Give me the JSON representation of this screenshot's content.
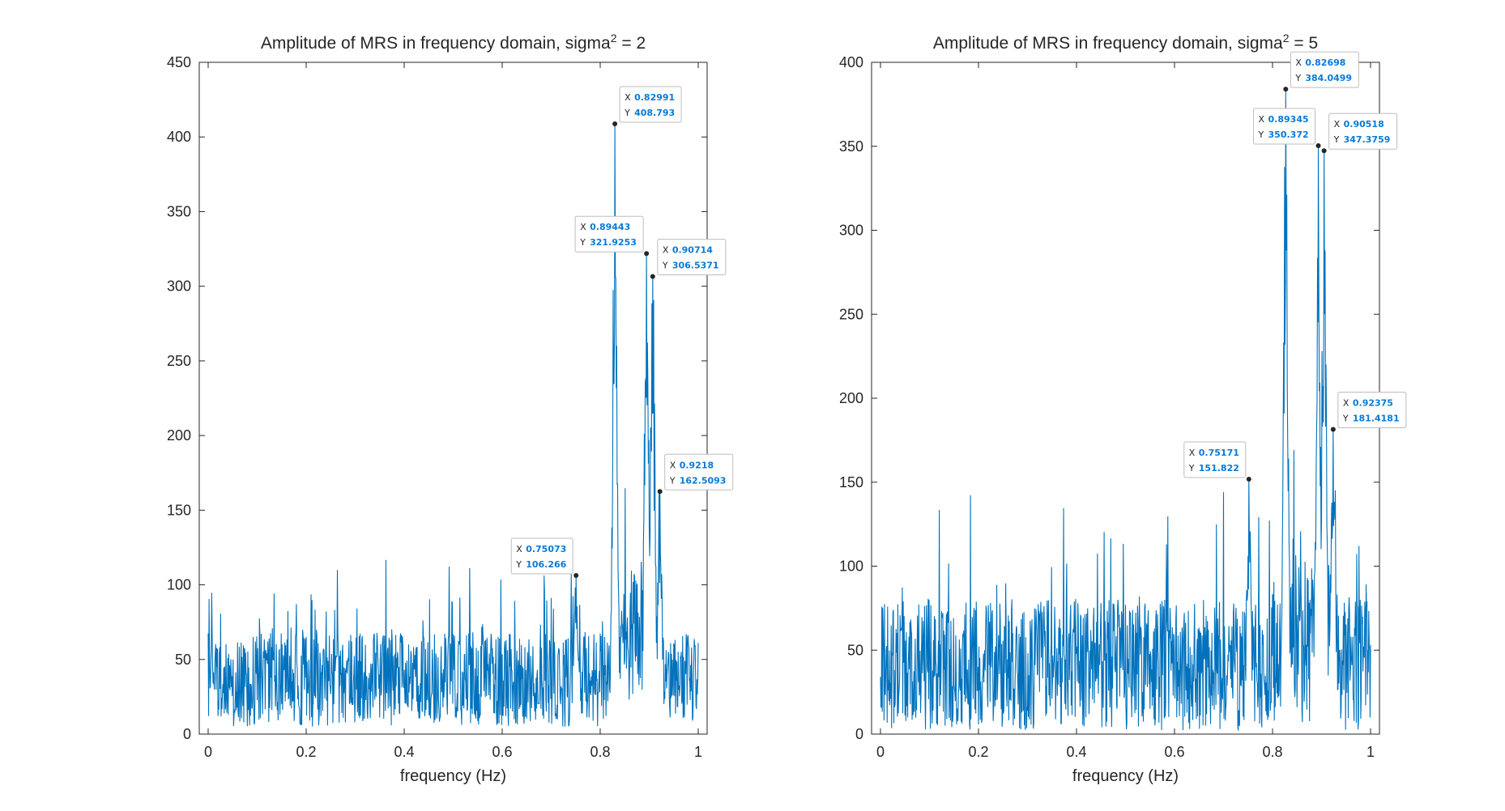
{
  "colors": {
    "series": "#0072BD",
    "axis": "#262626",
    "datatip_value": "#0a7ad6",
    "datatip_border": "#bdbdbd"
  },
  "chart_data": [
    {
      "type": "line",
      "title": "Amplitude of MRS in frequency domain, sigma",
      "title_superscript": "2",
      "title_suffix": " = 2",
      "xlabel": "frequency (Hz)",
      "ylabel": "",
      "xlim": [
        0,
        1
      ],
      "ylim": [
        0,
        450
      ],
      "xticks": [
        0,
        0.2,
        0.4,
        0.6,
        0.8,
        1
      ],
      "xtick_labels": [
        "0",
        "0.2",
        "0.4",
        "0.6",
        "0.8",
        "1"
      ],
      "yticks": [
        0,
        50,
        100,
        150,
        200,
        250,
        300,
        350,
        400,
        450
      ],
      "ytick_labels": [
        "0",
        "50",
        "100",
        "150",
        "200",
        "250",
        "300",
        "350",
        "400",
        "450"
      ],
      "grid": false,
      "series": [
        {
          "noise_floor_range": [
            5,
            120
          ],
          "peaks": [
            {
              "x": 0.75073,
              "y": 106.266
            },
            {
              "x": 0.82991,
              "y": 408.793
            },
            {
              "x": 0.89443,
              "y": 321.9253
            },
            {
              "x": 0.90714,
              "y": 306.5371
            },
            {
              "x": 0.9218,
              "y": 162.5093
            }
          ]
        }
      ],
      "datatips": [
        {
          "x": 0.82991,
          "y": 408.793,
          "x_text": "0.82991",
          "y_text": "408.793",
          "side": "right"
        },
        {
          "x": 0.89443,
          "y": 321.9253,
          "x_text": "0.89443",
          "y_text": "321.9253",
          "side": "left"
        },
        {
          "x": 0.90714,
          "y": 306.5371,
          "x_text": "0.90714",
          "y_text": "306.5371",
          "side": "right"
        },
        {
          "x": 0.9218,
          "y": 162.5093,
          "x_text": "0.9218",
          "y_text": "162.5093",
          "side": "right"
        },
        {
          "x": 0.75073,
          "y": 106.266,
          "x_text": "0.75073",
          "y_text": "106.266",
          "side": "left"
        }
      ]
    },
    {
      "type": "line",
      "title": "Amplitude of MRS in frequency domain, sigma",
      "title_superscript": "2",
      "title_suffix": " = 5",
      "xlabel": "frequency (Hz)",
      "ylabel": "",
      "xlim": [
        0,
        1
      ],
      "ylim": [
        0,
        400
      ],
      "xticks": [
        0,
        0.2,
        0.4,
        0.6,
        0.8,
        1
      ],
      "xtick_labels": [
        "0",
        "0.2",
        "0.4",
        "0.6",
        "0.8",
        "1"
      ],
      "yticks": [
        0,
        50,
        100,
        150,
        200,
        250,
        300,
        350,
        400
      ],
      "ytick_labels": [
        "0",
        "50",
        "100",
        "150",
        "200",
        "250",
        "300",
        "350",
        "400"
      ],
      "grid": false,
      "series": [
        {
          "noise_floor_range": [
            2,
            145
          ],
          "peaks": [
            {
              "x": 0.75171,
              "y": 151.822
            },
            {
              "x": 0.82698,
              "y": 384.0499
            },
            {
              "x": 0.89345,
              "y": 350.372
            },
            {
              "x": 0.90518,
              "y": 347.3759
            },
            {
              "x": 0.92375,
              "y": 181.4181
            }
          ]
        }
      ],
      "datatips": [
        {
          "x": 0.82698,
          "y": 384.0499,
          "x_text": "0.82698",
          "y_text": "384.0499",
          "side": "right"
        },
        {
          "x": 0.89345,
          "y": 350.372,
          "x_text": "0.89345",
          "y_text": "350.372",
          "side": "left"
        },
        {
          "x": 0.90518,
          "y": 347.3759,
          "x_text": "0.90518",
          "y_text": "347.3759",
          "side": "right"
        },
        {
          "x": 0.92375,
          "y": 181.4181,
          "x_text": "0.92375",
          "y_text": "181.4181",
          "side": "right"
        },
        {
          "x": 0.75171,
          "y": 151.822,
          "x_text": "0.75171",
          "y_text": "151.822",
          "side": "left"
        }
      ]
    }
  ]
}
